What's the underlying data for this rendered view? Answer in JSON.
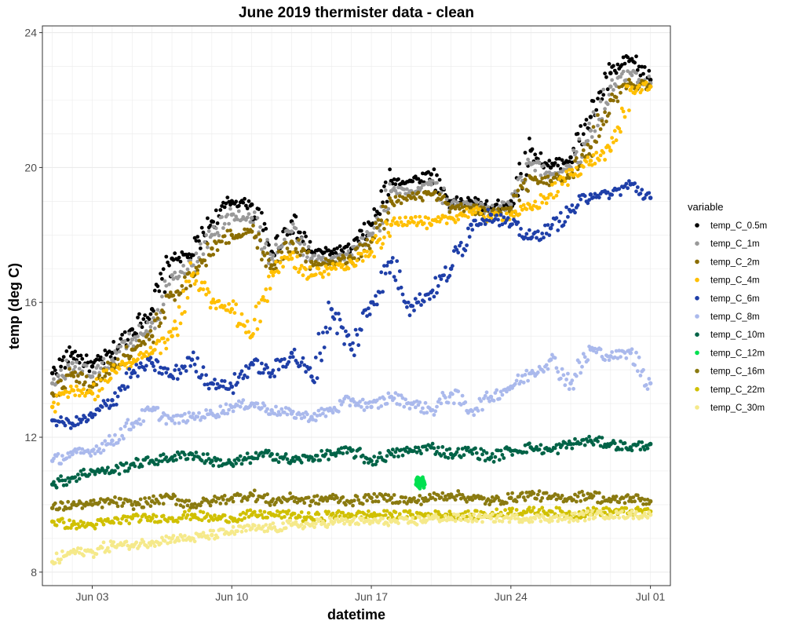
{
  "chart_data": {
    "type": "scatter",
    "title": "June 2019 thermister data - clean",
    "xlabel": "datetime",
    "ylabel": "temp (deg C)",
    "x_tick_labels": [
      "Jun 03",
      "Jun 10",
      "Jun 17",
      "Jun 24",
      "Jul 01"
    ],
    "x_tick_values": [
      "2019-06-03",
      "2019-06-10",
      "2019-06-17",
      "2019-06-24",
      "2019-07-01"
    ],
    "y_tick_labels": [
      "8",
      "12",
      "16",
      "20",
      "24"
    ],
    "y_tick_values": [
      8,
      12,
      16,
      20,
      24
    ],
    "xlim": [
      "2019-05-31T12:00",
      "2019-07-02T00:00"
    ],
    "ylim": [
      7.6,
      24.2
    ],
    "grid": true,
    "legend": {
      "title": "variable",
      "position": "right",
      "entries": [
        "temp_C_0.5m",
        "temp_C_1m",
        "temp_C_2m",
        "temp_C_4m",
        "temp_C_6m",
        "temp_C_8m",
        "temp_C_10m",
        "temp_C_12m",
        "temp_C_16m",
        "temp_C_22m",
        "temp_C_30m"
      ]
    },
    "series": [
      {
        "name": "temp_C_0.5m",
        "color": "#000000",
        "x": [
          "2019-06-01",
          "2019-06-02",
          "2019-06-03",
          "2019-06-04",
          "2019-06-05",
          "2019-06-06",
          "2019-06-07",
          "2019-06-08",
          "2019-06-09",
          "2019-06-10",
          "2019-06-11",
          "2019-06-12",
          "2019-06-13",
          "2019-06-14",
          "2019-06-15",
          "2019-06-16",
          "2019-06-17",
          "2019-06-18",
          "2019-06-19",
          "2019-06-20",
          "2019-06-21",
          "2019-06-22",
          "2019-06-23",
          "2019-06-24",
          "2019-06-25",
          "2019-06-26",
          "2019-06-27",
          "2019-06-28",
          "2019-06-29",
          "2019-06-30",
          "2019-07-01"
        ],
        "values": [
          13.9,
          14.5,
          14.1,
          14.5,
          15.2,
          15.8,
          17.3,
          17.4,
          18.4,
          19.0,
          18.9,
          17.5,
          18.4,
          17.5,
          17.5,
          17.6,
          18.3,
          19.6,
          19.6,
          19.8,
          19.0,
          19.0,
          18.8,
          19.0,
          20.5,
          20.0,
          20.3,
          21.5,
          22.8,
          23.2,
          22.6
        ]
      },
      {
        "name": "temp_C_1m",
        "color": "#999999",
        "x": [
          "2019-06-01",
          "2019-06-02",
          "2019-06-03",
          "2019-06-04",
          "2019-06-05",
          "2019-06-06",
          "2019-06-07",
          "2019-06-08",
          "2019-06-09",
          "2019-06-10",
          "2019-06-11",
          "2019-06-12",
          "2019-06-13",
          "2019-06-14",
          "2019-06-15",
          "2019-06-16",
          "2019-06-17",
          "2019-06-18",
          "2019-06-19",
          "2019-06-20",
          "2019-06-21",
          "2019-06-22",
          "2019-06-23",
          "2019-06-24",
          "2019-06-25",
          "2019-06-26",
          "2019-06-27",
          "2019-06-28",
          "2019-06-29",
          "2019-06-30",
          "2019-07-01"
        ],
        "values": [
          13.6,
          14.2,
          13.8,
          14.3,
          14.9,
          15.4,
          16.8,
          17.1,
          18.0,
          18.6,
          18.5,
          17.3,
          18.1,
          17.3,
          17.3,
          17.4,
          18.0,
          19.3,
          19.3,
          19.5,
          18.9,
          18.9,
          18.7,
          18.9,
          20.1,
          19.8,
          20.0,
          21.1,
          22.4,
          22.8,
          22.5
        ]
      },
      {
        "name": "temp_C_2m",
        "color": "#8b6d00",
        "x": [
          "2019-06-01",
          "2019-06-02",
          "2019-06-03",
          "2019-06-04",
          "2019-06-05",
          "2019-06-06",
          "2019-06-07",
          "2019-06-08",
          "2019-06-09",
          "2019-06-10",
          "2019-06-11",
          "2019-06-12",
          "2019-06-13",
          "2019-06-14",
          "2019-06-15",
          "2019-06-16",
          "2019-06-17",
          "2019-06-18",
          "2019-06-19",
          "2019-06-20",
          "2019-06-21",
          "2019-06-22",
          "2019-06-23",
          "2019-06-24",
          "2019-06-25",
          "2019-06-26",
          "2019-06-27",
          "2019-06-28",
          "2019-06-29",
          "2019-06-30",
          "2019-07-01"
        ],
        "values": [
          13.3,
          13.9,
          13.5,
          14.1,
          14.6,
          15.0,
          16.2,
          16.8,
          17.6,
          18.0,
          18.1,
          17.1,
          17.8,
          17.2,
          17.2,
          17.3,
          17.8,
          19.0,
          19.1,
          19.2,
          18.8,
          18.8,
          18.6,
          18.8,
          19.7,
          19.6,
          19.8,
          20.6,
          22.0,
          22.5,
          22.4
        ]
      },
      {
        "name": "temp_C_4m",
        "color": "#ffbf00",
        "x": [
          "2019-06-01",
          "2019-06-02",
          "2019-06-03",
          "2019-06-04",
          "2019-06-05",
          "2019-06-06",
          "2019-06-07",
          "2019-06-08",
          "2019-06-09",
          "2019-06-10",
          "2019-06-11",
          "2019-06-12",
          "2019-06-13",
          "2019-06-14",
          "2019-06-15",
          "2019-06-16",
          "2019-06-17",
          "2019-06-18",
          "2019-06-19",
          "2019-06-20",
          "2019-06-21",
          "2019-06-22",
          "2019-06-23",
          "2019-06-24",
          "2019-06-25",
          "2019-06-26",
          "2019-06-27",
          "2019-06-28",
          "2019-06-29",
          "2019-06-30",
          "2019-07-01"
        ],
        "values": [
          12.9,
          13.4,
          13.3,
          14.0,
          14.2,
          14.5,
          15.0,
          16.8,
          16.0,
          15.8,
          15.0,
          16.9,
          17.3,
          16.8,
          17.0,
          17.2,
          17.5,
          18.3,
          18.5,
          18.3,
          18.5,
          18.7,
          18.5,
          18.6,
          18.8,
          19.2,
          19.8,
          20.2,
          20.5,
          22.3,
          22.4
        ]
      },
      {
        "name": "temp_C_6m",
        "color": "#1f3fa8",
        "x": [
          "2019-06-01",
          "2019-06-02",
          "2019-06-03",
          "2019-06-04",
          "2019-06-05",
          "2019-06-06",
          "2019-06-07",
          "2019-06-08",
          "2019-06-09",
          "2019-06-10",
          "2019-06-11",
          "2019-06-12",
          "2019-06-13",
          "2019-06-14",
          "2019-06-15",
          "2019-06-16",
          "2019-06-17",
          "2019-06-18",
          "2019-06-19",
          "2019-06-20",
          "2019-06-21",
          "2019-06-22",
          "2019-06-23",
          "2019-06-24",
          "2019-06-25",
          "2019-06-26",
          "2019-06-27",
          "2019-06-28",
          "2019-06-29",
          "2019-06-30",
          "2019-07-01"
        ],
        "values": [
          12.5,
          12.4,
          12.6,
          13.1,
          13.9,
          14.2,
          13.8,
          14.3,
          13.6,
          13.5,
          14.2,
          13.9,
          14.5,
          13.8,
          15.8,
          14.6,
          16.0,
          17.2,
          15.9,
          16.3,
          17.0,
          18.3,
          18.6,
          18.3,
          17.9,
          18.2,
          18.7,
          19.2,
          19.2,
          19.5,
          19.1
        ]
      },
      {
        "name": "temp_C_8m",
        "color": "#aab9ec",
        "x": [
          "2019-06-01",
          "2019-06-02",
          "2019-06-03",
          "2019-06-04",
          "2019-06-05",
          "2019-06-06",
          "2019-06-07",
          "2019-06-08",
          "2019-06-09",
          "2019-06-10",
          "2019-06-11",
          "2019-06-12",
          "2019-06-13",
          "2019-06-14",
          "2019-06-15",
          "2019-06-16",
          "2019-06-17",
          "2019-06-18",
          "2019-06-19",
          "2019-06-20",
          "2019-06-21",
          "2019-06-22",
          "2019-06-23",
          "2019-06-24",
          "2019-06-25",
          "2019-06-26",
          "2019-06-27",
          "2019-06-28",
          "2019-06-29",
          "2019-06-30",
          "2019-07-01"
        ],
        "values": [
          11.3,
          11.5,
          11.6,
          11.9,
          12.4,
          12.8,
          12.5,
          12.6,
          12.7,
          12.9,
          13.0,
          12.8,
          12.7,
          12.6,
          12.8,
          13.1,
          12.9,
          13.2,
          13.0,
          12.8,
          13.3,
          12.8,
          13.2,
          13.5,
          13.9,
          14.3,
          13.6,
          14.6,
          14.4,
          14.5,
          13.6
        ]
      },
      {
        "name": "temp_C_10m",
        "color": "#006347",
        "x": [
          "2019-06-01",
          "2019-06-02",
          "2019-06-03",
          "2019-06-04",
          "2019-06-05",
          "2019-06-06",
          "2019-06-07",
          "2019-06-08",
          "2019-06-09",
          "2019-06-10",
          "2019-06-11",
          "2019-06-12",
          "2019-06-13",
          "2019-06-14",
          "2019-06-15",
          "2019-06-16",
          "2019-06-17",
          "2019-06-18",
          "2019-06-19",
          "2019-06-20",
          "2019-06-21",
          "2019-06-22",
          "2019-06-23",
          "2019-06-24",
          "2019-06-25",
          "2019-06-26",
          "2019-06-27",
          "2019-06-28",
          "2019-06-29",
          "2019-06-30",
          "2019-07-01"
        ],
        "values": [
          10.6,
          10.8,
          11.0,
          11.0,
          11.2,
          11.3,
          11.4,
          11.5,
          11.3,
          11.2,
          11.4,
          11.5,
          11.3,
          11.4,
          11.5,
          11.6,
          11.3,
          11.5,
          11.6,
          11.7,
          11.5,
          11.6,
          11.4,
          11.6,
          11.7,
          11.6,
          11.8,
          11.9,
          11.8,
          11.7,
          11.8
        ]
      },
      {
        "name": "temp_C_12m",
        "color": "#00e050",
        "x": [
          "2019-06-19T06:00",
          "2019-06-19T08:00",
          "2019-06-19T10:00",
          "2019-06-19T12:00",
          "2019-06-19T14:00",
          "2019-06-19T16:00"
        ],
        "values": [
          10.6,
          10.7,
          10.6,
          10.7,
          10.7,
          10.6
        ]
      },
      {
        "name": "temp_C_16m",
        "color": "#8a7a10",
        "x": [
          "2019-06-01",
          "2019-06-02",
          "2019-06-03",
          "2019-06-04",
          "2019-06-05",
          "2019-06-06",
          "2019-06-07",
          "2019-06-08",
          "2019-06-09",
          "2019-06-10",
          "2019-06-11",
          "2019-06-12",
          "2019-06-13",
          "2019-06-14",
          "2019-06-15",
          "2019-06-16",
          "2019-06-17",
          "2019-06-18",
          "2019-06-19",
          "2019-06-20",
          "2019-06-21",
          "2019-06-22",
          "2019-06-23",
          "2019-06-24",
          "2019-06-25",
          "2019-06-26",
          "2019-06-27",
          "2019-06-28",
          "2019-06-29",
          "2019-06-30",
          "2019-07-01"
        ],
        "values": [
          9.9,
          10.0,
          10.0,
          10.1,
          10.0,
          10.1,
          10.2,
          10.0,
          10.1,
          10.2,
          10.3,
          10.1,
          10.2,
          10.1,
          10.2,
          10.1,
          10.2,
          10.2,
          10.1,
          10.2,
          10.3,
          10.2,
          10.1,
          10.2,
          10.3,
          10.2,
          10.2,
          10.3,
          10.1,
          10.2,
          10.1
        ]
      },
      {
        "name": "temp_C_22m",
        "color": "#d0c000",
        "x": [
          "2019-06-01",
          "2019-06-02",
          "2019-06-03",
          "2019-06-04",
          "2019-06-05",
          "2019-06-06",
          "2019-06-07",
          "2019-06-08",
          "2019-06-09",
          "2019-06-10",
          "2019-06-11",
          "2019-06-12",
          "2019-06-13",
          "2019-06-14",
          "2019-06-15",
          "2019-06-16",
          "2019-06-17",
          "2019-06-18",
          "2019-06-19",
          "2019-06-20",
          "2019-06-21",
          "2019-06-22",
          "2019-06-23",
          "2019-06-24",
          "2019-06-25",
          "2019-06-26",
          "2019-06-27",
          "2019-06-28",
          "2019-06-29",
          "2019-06-30",
          "2019-07-01"
        ],
        "values": [
          9.5,
          9.4,
          9.4,
          9.5,
          9.6,
          9.6,
          9.6,
          9.7,
          9.6,
          9.6,
          9.7,
          9.7,
          9.7,
          9.6,
          9.7,
          9.7,
          9.7,
          9.7,
          9.7,
          9.7,
          9.7,
          9.7,
          9.7,
          9.8,
          9.8,
          9.8,
          9.7,
          9.8,
          9.8,
          9.8,
          9.8
        ]
      },
      {
        "name": "temp_C_30m",
        "color": "#f5e98a",
        "x": [
          "2019-06-01",
          "2019-06-02",
          "2019-06-03",
          "2019-06-04",
          "2019-06-05",
          "2019-06-06",
          "2019-06-07",
          "2019-06-08",
          "2019-06-09",
          "2019-06-10",
          "2019-06-11",
          "2019-06-12",
          "2019-06-13",
          "2019-06-14",
          "2019-06-15",
          "2019-06-16",
          "2019-06-17",
          "2019-06-18",
          "2019-06-19",
          "2019-06-20",
          "2019-06-21",
          "2019-06-22",
          "2019-06-23",
          "2019-06-24",
          "2019-06-25",
          "2019-06-26",
          "2019-06-27",
          "2019-06-28",
          "2019-06-29",
          "2019-06-30",
          "2019-07-01"
        ],
        "values": [
          8.3,
          8.6,
          8.6,
          8.8,
          8.8,
          8.9,
          9.0,
          9.0,
          9.1,
          9.2,
          9.3,
          9.3,
          9.4,
          9.4,
          9.5,
          9.5,
          9.5,
          9.5,
          9.5,
          9.6,
          9.6,
          9.6,
          9.6,
          9.6,
          9.6,
          9.6,
          9.6,
          9.7,
          9.7,
          9.7,
          9.7
        ]
      }
    ]
  }
}
